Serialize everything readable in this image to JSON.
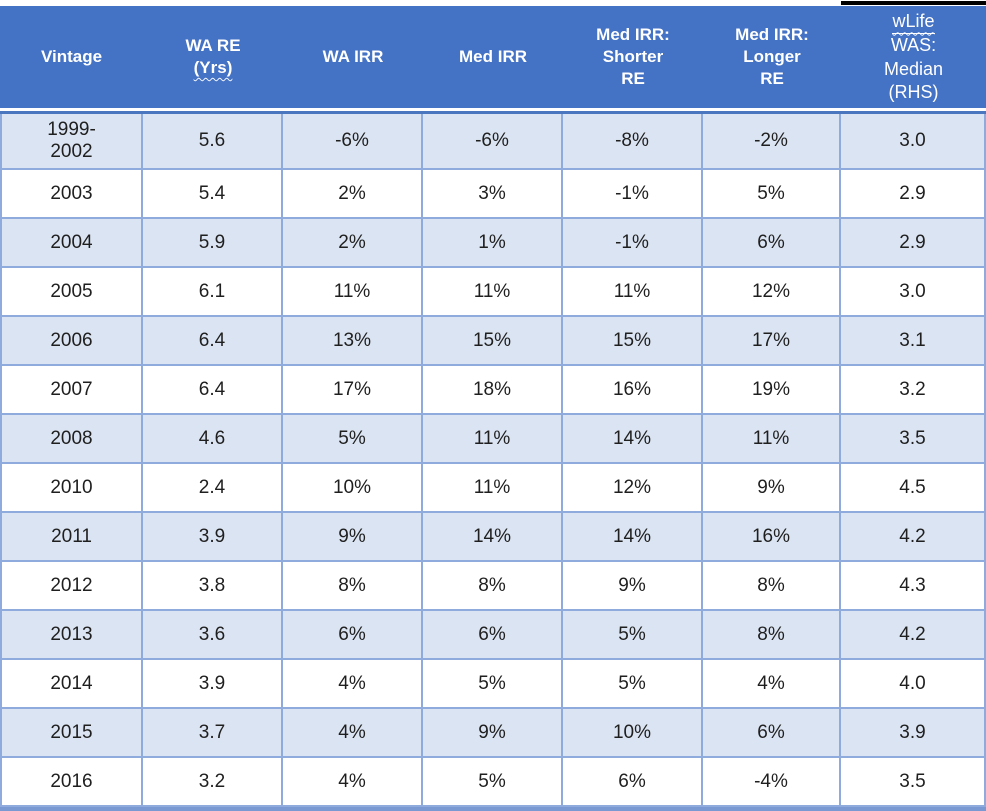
{
  "table": {
    "headers": {
      "vintage": "Vintage",
      "wa_re": [
        "WA RE",
        "(Yrs)"
      ],
      "wa_irr": "WA IRR",
      "med_irr": "Med IRR",
      "med_irr_shorter": [
        "Med IRR:",
        "Shorter",
        "RE"
      ],
      "med_irr_longer": [
        "Med IRR:",
        "Longer",
        "RE"
      ],
      "wlife": [
        "wLife",
        "WAS:",
        "Median",
        "(RHS)"
      ]
    },
    "rows": [
      [
        "1999-\n2002",
        "5.6",
        "-6%",
        "-6%",
        "-8%",
        "-2%",
        "3.0"
      ],
      [
        "2003",
        "5.4",
        "2%",
        "3%",
        "-1%",
        "5%",
        "2.9"
      ],
      [
        "2004",
        "5.9",
        "2%",
        "1%",
        "-1%",
        "6%",
        "2.9"
      ],
      [
        "2005",
        "6.1",
        "11%",
        "11%",
        "11%",
        "12%",
        "3.0"
      ],
      [
        "2006",
        "6.4",
        "13%",
        "15%",
        "15%",
        "17%",
        "3.1"
      ],
      [
        "2007",
        "6.4",
        "17%",
        "18%",
        "16%",
        "19%",
        "3.2"
      ],
      [
        "2008",
        "4.6",
        "5%",
        "11%",
        "14%",
        "11%",
        "3.5"
      ],
      [
        "2010",
        "2.4",
        "10%",
        "11%",
        "12%",
        "9%",
        "4.5"
      ],
      [
        "2011",
        "3.9",
        "9%",
        "14%",
        "14%",
        "16%",
        "4.2"
      ],
      [
        "2012",
        "3.8",
        "8%",
        "8%",
        "9%",
        "8%",
        "4.3"
      ],
      [
        "2013",
        "3.6",
        "6%",
        "6%",
        "5%",
        "8%",
        "4.2"
      ],
      [
        "2014",
        "3.9",
        "4%",
        "5%",
        "5%",
        "4%",
        "4.0"
      ],
      [
        "2015",
        "3.7",
        "4%",
        "9%",
        "10%",
        "6%",
        "3.9"
      ],
      [
        "2016",
        "3.2",
        "4%",
        "5%",
        "6%",
        "-4%",
        "3.5"
      ]
    ],
    "colors": {
      "header_bg": "#4472c4",
      "row_alt_bg": "#dbe4f2",
      "row_bg": "#ffffff",
      "grid_border": "#8faadc",
      "header_rule": "#4a76c0",
      "bottom_bar": "#7a99d2",
      "top_mark": "#000000"
    }
  }
}
